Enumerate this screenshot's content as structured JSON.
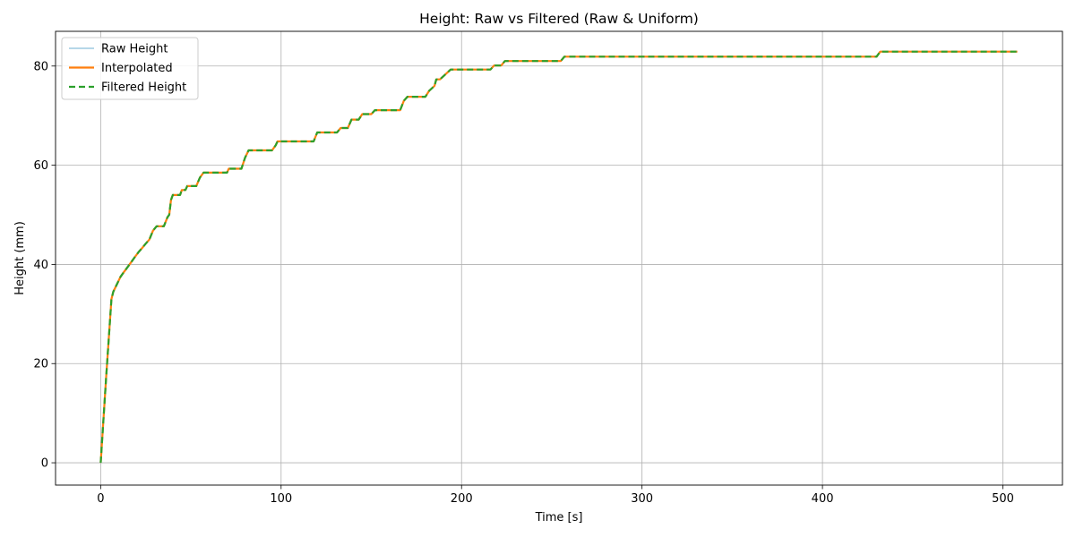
{
  "chart_data": {
    "type": "line",
    "title": "Height: Raw vs Filtered (Raw & Uniform)",
    "xlabel": "Time [s]",
    "ylabel": "Height (mm)",
    "xlim": [
      -25,
      533
    ],
    "ylim": [
      -4.5,
      87
    ],
    "xticks": [
      0,
      100,
      200,
      300,
      400,
      500
    ],
    "yticks": [
      0,
      20,
      40,
      60,
      80
    ],
    "grid": true,
    "legend_position": "top-left",
    "series": [
      {
        "name": "Raw Height",
        "color": "#9ecae1",
        "style": "solid"
      },
      {
        "name": "Interpolated",
        "color": "#ff7f0e",
        "style": "solid"
      },
      {
        "name": "Filtered Height",
        "color": "#2ca02c",
        "style": "dashed"
      }
    ],
    "x": [
      0,
      3,
      6,
      7,
      9,
      11,
      13,
      15,
      17,
      19,
      21,
      23,
      25,
      27,
      29,
      31,
      35,
      37,
      38,
      39,
      40,
      44,
      45,
      47,
      48,
      53,
      55,
      57,
      70,
      71,
      78,
      80,
      82,
      95,
      97,
      98,
      118,
      120,
      131,
      133,
      137,
      139,
      143,
      145,
      150,
      152,
      166,
      168,
      170,
      172,
      180,
      182,
      185,
      186,
      188,
      191,
      194,
      216,
      218,
      222,
      224,
      255,
      257,
      430,
      432,
      508
    ],
    "y": [
      0,
      17,
      33,
      34.5,
      36,
      37.5,
      38.5,
      39.5,
      40.5,
      41.5,
      42.5,
      43.3,
      44.2,
      45,
      46.8,
      47.7,
      47.7,
      49.5,
      50,
      53,
      54,
      54,
      55,
      55,
      55.8,
      55.8,
      57.5,
      58.5,
      58.5,
      59.3,
      59.3,
      61.5,
      63,
      63,
      64,
      64.8,
      64.8,
      66.6,
      66.6,
      67.5,
      67.5,
      69.2,
      69.2,
      70.3,
      70.3,
      71.1,
      71.1,
      73,
      73.8,
      73.8,
      73.8,
      75,
      76,
      77.3,
      77.3,
      78.3,
      79.3,
      79.3,
      80.1,
      80.1,
      81,
      81,
      81.9,
      81.9,
      82.9,
      82.9
    ]
  }
}
